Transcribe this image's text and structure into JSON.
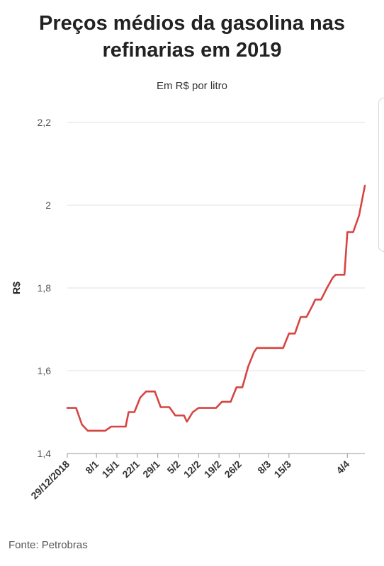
{
  "chart_data": {
    "type": "line",
    "title_lines": [
      "Preços médios da gasolina nas",
      "refinarias em 2019"
    ],
    "subtitle": "Em R$ por litro",
    "ylabel": "R$",
    "xlabel": "",
    "source": "Fonte: Petrobras",
    "ylim": [
      1.4,
      2.2
    ],
    "y_ticks": [
      {
        "value": 1.4,
        "label": "1,4"
      },
      {
        "value": 1.6,
        "label": "1,6"
      },
      {
        "value": 1.8,
        "label": "1,8"
      },
      {
        "value": 2.0,
        "label": "2"
      },
      {
        "value": 2.2,
        "label": "2,2"
      }
    ],
    "x_ticks": [
      "29/12/2018",
      "8/1",
      "15/1",
      "22/1",
      "29/1",
      "5/2",
      "12/2",
      "19/2",
      "26/2",
      "8/3",
      "15/3",
      "4/4"
    ],
    "x_tick_dates": [
      "2018-12-29",
      "2019-01-08",
      "2019-01-15",
      "2019-01-22",
      "2019-01-29",
      "2019-02-05",
      "2019-02-12",
      "2019-02-19",
      "2019-02-26",
      "2019-03-08",
      "2019-03-15",
      "2019-04-04"
    ],
    "grid": true,
    "line_color": "#d64541",
    "series": [
      {
        "points": [
          {
            "x": "2018-12-29",
            "y": 1.51
          },
          {
            "x": "2019-01-01",
            "y": 1.51
          },
          {
            "x": "2019-01-03",
            "y": 1.47
          },
          {
            "x": "2019-01-05",
            "y": 1.455
          },
          {
            "x": "2019-01-09",
            "y": 1.455
          },
          {
            "x": "2019-01-11",
            "y": 1.455
          },
          {
            "x": "2019-01-13",
            "y": 1.465
          },
          {
            "x": "2019-01-17",
            "y": 1.465
          },
          {
            "x": "2019-01-18",
            "y": 1.465
          },
          {
            "x": "2019-01-19",
            "y": 1.5
          },
          {
            "x": "2019-01-21",
            "y": 1.5
          },
          {
            "x": "2019-01-23",
            "y": 1.535
          },
          {
            "x": "2019-01-25",
            "y": 1.55
          },
          {
            "x": "2019-01-28",
            "y": 1.55
          },
          {
            "x": "2019-01-30",
            "y": 1.512
          },
          {
            "x": "2019-02-02",
            "y": 1.512
          },
          {
            "x": "2019-02-04",
            "y": 1.492
          },
          {
            "x": "2019-02-07",
            "y": 1.492
          },
          {
            "x": "2019-02-08",
            "y": 1.477
          },
          {
            "x": "2019-02-10",
            "y": 1.5
          },
          {
            "x": "2019-02-12",
            "y": 1.51
          },
          {
            "x": "2019-02-18",
            "y": 1.51
          },
          {
            "x": "2019-02-20",
            "y": 1.525
          },
          {
            "x": "2019-02-23",
            "y": 1.525
          },
          {
            "x": "2019-02-25",
            "y": 1.56
          },
          {
            "x": "2019-02-27",
            "y": 1.56
          },
          {
            "x": "2019-03-01",
            "y": 1.61
          },
          {
            "x": "2019-03-03",
            "y": 1.645
          },
          {
            "x": "2019-03-04",
            "y": 1.655
          },
          {
            "x": "2019-03-13",
            "y": 1.655
          },
          {
            "x": "2019-03-15",
            "y": 1.69
          },
          {
            "x": "2019-03-17",
            "y": 1.69
          },
          {
            "x": "2019-03-19",
            "y": 1.73
          },
          {
            "x": "2019-03-21",
            "y": 1.73
          },
          {
            "x": "2019-03-23",
            "y": 1.757
          },
          {
            "x": "2019-03-24",
            "y": 1.772
          },
          {
            "x": "2019-03-26",
            "y": 1.772
          },
          {
            "x": "2019-03-28",
            "y": 1.8
          },
          {
            "x": "2019-03-30",
            "y": 1.825
          },
          {
            "x": "2019-03-31",
            "y": 1.832
          },
          {
            "x": "2019-04-03",
            "y": 1.832
          },
          {
            "x": "2019-04-04",
            "y": 1.935
          },
          {
            "x": "2019-04-06",
            "y": 1.935
          },
          {
            "x": "2019-04-08",
            "y": 1.975
          },
          {
            "x": "2019-04-10",
            "y": 2.047
          }
        ]
      }
    ]
  }
}
